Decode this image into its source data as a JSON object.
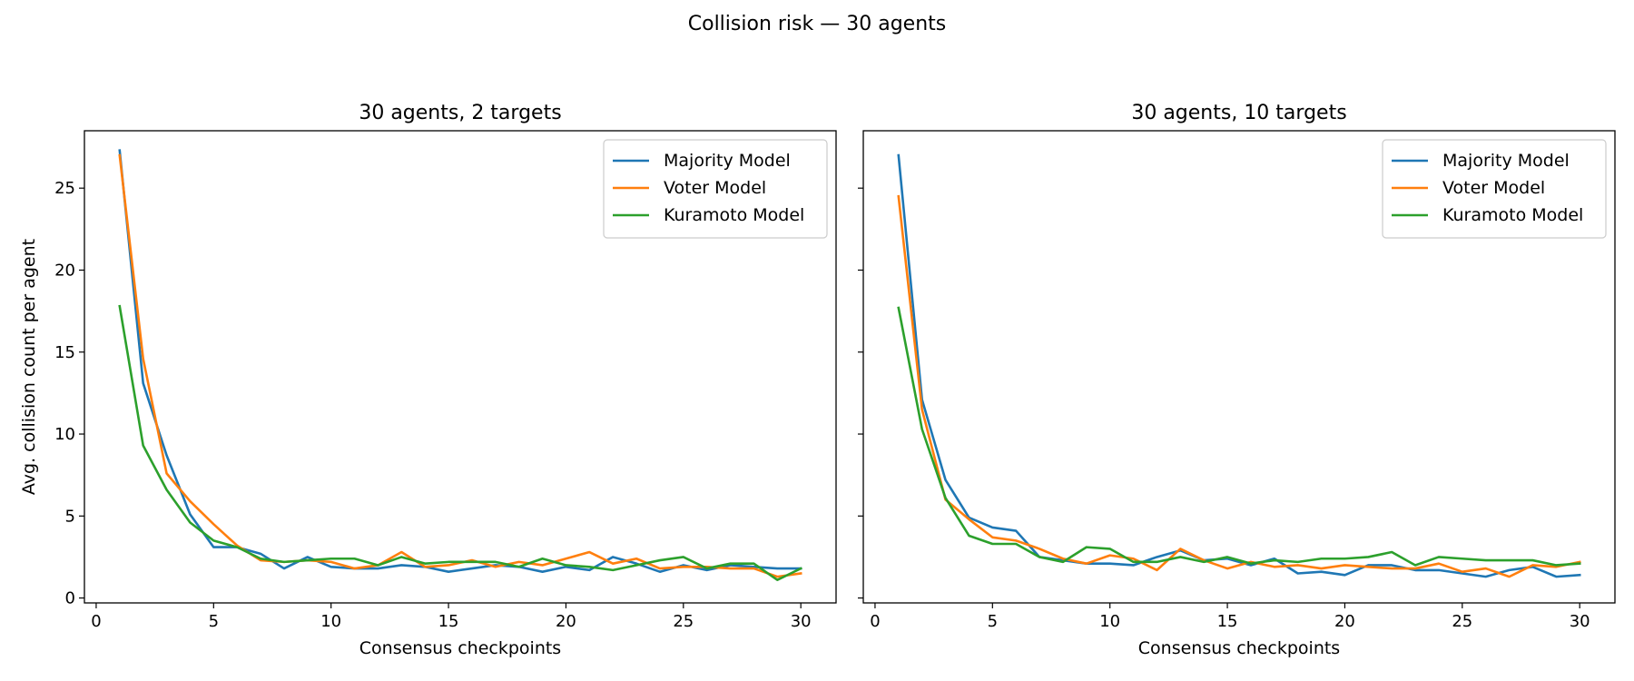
{
  "figure": {
    "title": "Collision risk — 30 agents"
  },
  "chart_data": [
    {
      "type": "line",
      "title": "30 agents, 2 targets",
      "xlabel": "Consensus checkpoints",
      "ylabel": "Avg. collision count per agent",
      "xlim": [
        -0.5,
        31.5
      ],
      "ylim": [
        -0.3,
        28.5
      ],
      "xticks": [
        0,
        5,
        10,
        15,
        20,
        25,
        30
      ],
      "yticks": [
        0,
        5,
        10,
        15,
        20,
        25
      ],
      "legend": "top-right",
      "grid": false,
      "x": [
        1,
        2,
        3,
        4,
        5,
        6,
        7,
        8,
        9,
        10,
        11,
        12,
        13,
        14,
        15,
        16,
        17,
        18,
        19,
        20,
        21,
        22,
        23,
        24,
        25,
        26,
        27,
        28,
        29,
        30
      ],
      "series": [
        {
          "name": "Majority Model",
          "color": "#1f77b4",
          "values": [
            27.3,
            13.1,
            8.7,
            5.1,
            3.1,
            3.1,
            2.7,
            1.8,
            2.5,
            1.9,
            1.8,
            1.8,
            2.0,
            1.9,
            1.6,
            1.8,
            2.0,
            1.9,
            1.6,
            1.9,
            1.7,
            2.5,
            2.1,
            1.6,
            2.0,
            1.7,
            2.0,
            1.9,
            1.8,
            1.8
          ]
        },
        {
          "name": "Voter Model",
          "color": "#ff7f0e",
          "values": [
            27.0,
            14.6,
            7.6,
            5.9,
            4.5,
            3.2,
            2.3,
            2.2,
            2.3,
            2.2,
            1.8,
            2.0,
            2.8,
            1.9,
            2.0,
            2.3,
            1.9,
            2.2,
            2.0,
            2.4,
            2.8,
            2.1,
            2.4,
            1.8,
            1.9,
            1.9,
            1.8,
            1.8,
            1.3,
            1.5
          ]
        },
        {
          "name": "Kuramoto Model",
          "color": "#2ca02c",
          "values": [
            17.8,
            9.3,
            6.6,
            4.6,
            3.5,
            3.1,
            2.4,
            2.2,
            2.3,
            2.4,
            2.4,
            2.0,
            2.5,
            2.1,
            2.2,
            2.2,
            2.2,
            1.9,
            2.4,
            2.0,
            1.9,
            1.7,
            2.0,
            2.3,
            2.5,
            1.8,
            2.1,
            2.1,
            1.1,
            1.8
          ]
        }
      ]
    },
    {
      "type": "line",
      "title": "30 agents, 10 targets",
      "xlabel": "Consensus checkpoints",
      "ylabel": "",
      "xlim": [
        -0.5,
        31.5
      ],
      "ylim": [
        -0.3,
        28.5
      ],
      "xticks": [
        0,
        5,
        10,
        15,
        20,
        25,
        30
      ],
      "yticks": [
        0,
        5,
        10,
        15,
        20,
        25
      ],
      "show_ytick_labels": false,
      "legend": "top-right",
      "grid": false,
      "x": [
        1,
        2,
        3,
        4,
        5,
        6,
        7,
        8,
        9,
        10,
        11,
        12,
        13,
        14,
        15,
        16,
        17,
        18,
        19,
        20,
        21,
        22,
        23,
        24,
        25,
        26,
        27,
        28,
        29,
        30
      ],
      "series": [
        {
          "name": "Majority Model",
          "color": "#1f77b4",
          "values": [
            27.0,
            12.1,
            7.2,
            4.9,
            4.3,
            4.1,
            2.5,
            2.3,
            2.1,
            2.1,
            2.0,
            2.5,
            2.9,
            2.3,
            2.4,
            2.0,
            2.4,
            1.5,
            1.6,
            1.4,
            2.0,
            2.0,
            1.7,
            1.7,
            1.5,
            1.3,
            1.7,
            1.9,
            1.3,
            1.4
          ]
        },
        {
          "name": "Voter Model",
          "color": "#ff7f0e",
          "values": [
            24.5,
            11.5,
            6.0,
            4.8,
            3.7,
            3.5,
            3.0,
            2.4,
            2.1,
            2.6,
            2.4,
            1.7,
            3.0,
            2.3,
            1.8,
            2.2,
            1.9,
            2.0,
            1.8,
            2.0,
            1.9,
            1.8,
            1.8,
            2.1,
            1.6,
            1.8,
            1.3,
            2.0,
            1.9,
            2.2
          ]
        },
        {
          "name": "Kuramoto Model",
          "color": "#2ca02c",
          "values": [
            17.7,
            10.3,
            6.1,
            3.8,
            3.3,
            3.3,
            2.5,
            2.2,
            3.1,
            3.0,
            2.2,
            2.2,
            2.5,
            2.2,
            2.5,
            2.1,
            2.3,
            2.2,
            2.4,
            2.4,
            2.5,
            2.8,
            2.0,
            2.5,
            2.4,
            2.3,
            2.3,
            2.3,
            2.0,
            2.1
          ]
        }
      ]
    }
  ]
}
